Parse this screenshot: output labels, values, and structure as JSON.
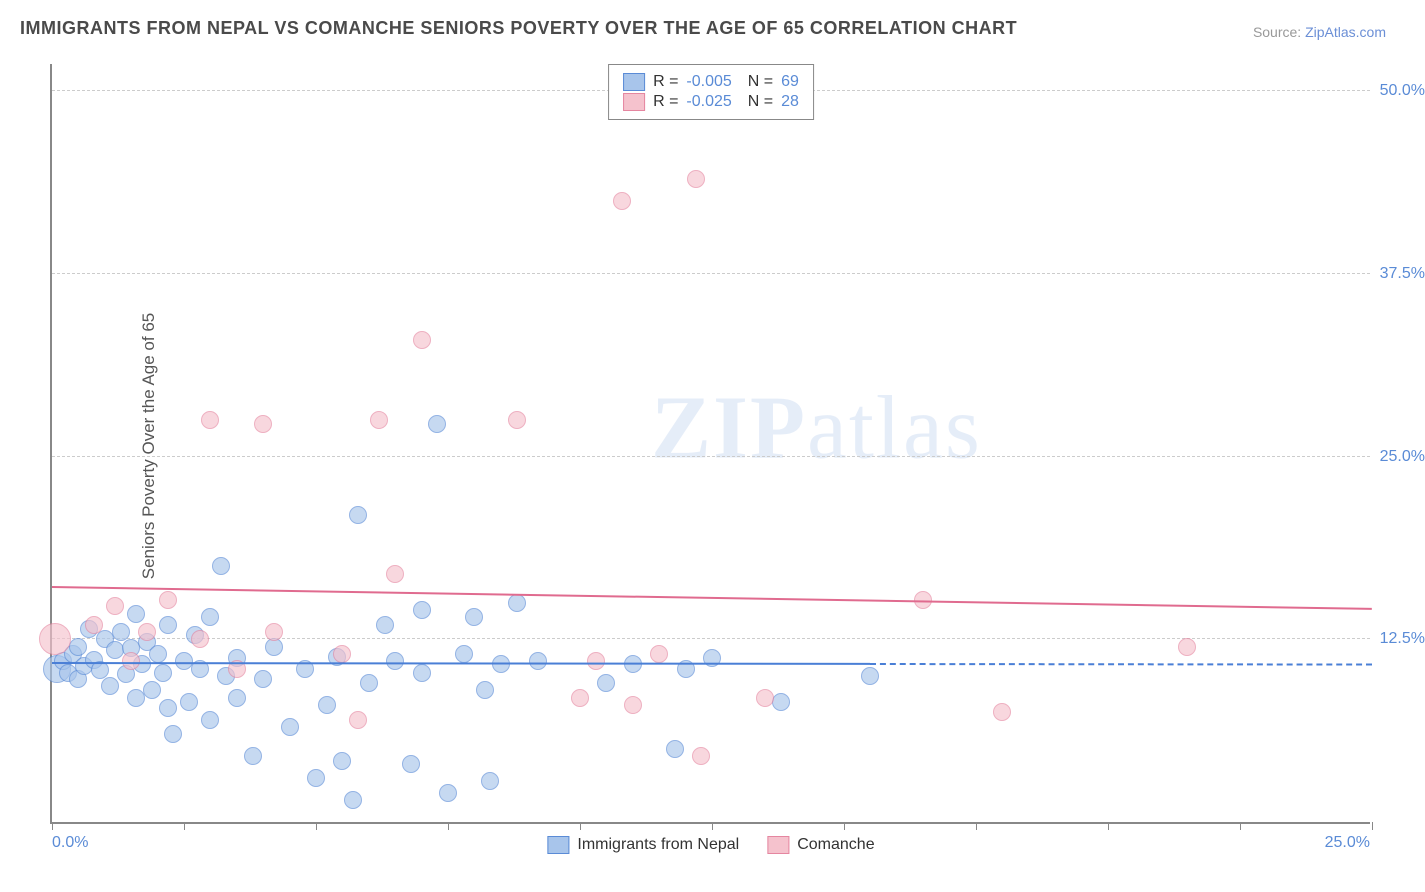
{
  "title": "IMMIGRANTS FROM NEPAL VS COMANCHE SENIORS POVERTY OVER THE AGE OF 65 CORRELATION CHART",
  "source_label": "Source:",
  "source_name": "ZipAtlas.com",
  "watermark_bold": "ZIP",
  "watermark_rest": "atlas",
  "chart": {
    "type": "scatter",
    "ylabel": "Seniors Poverty Over the Age of 65",
    "xlim": [
      0,
      25
    ],
    "ylim": [
      0,
      52
    ],
    "x_axis_ticks": [
      0,
      2.5,
      5,
      7.5,
      10,
      12.5,
      15,
      17.5,
      20,
      22.5,
      25
    ],
    "x_axis_labels": {
      "left": "0.0%",
      "right": "25.0%"
    },
    "y_gridlines": [
      {
        "v": 12.5,
        "label": "12.5%"
      },
      {
        "v": 25.0,
        "label": "25.0%"
      },
      {
        "v": 37.5,
        "label": "37.5%"
      },
      {
        "v": 50.0,
        "label": "50.0%"
      }
    ],
    "background_color": "#ffffff",
    "grid_color": "#cccccc",
    "axis_color": "#888888",
    "tick_label_color": "#5a8bd6",
    "title_fontsize": 18,
    "label_fontsize": 17,
    "tick_fontsize": 16,
    "series": [
      {
        "name": "Immigrants from Nepal",
        "fill": "#a8c5eb",
        "stroke": "#5a8bd6",
        "opacity": 0.65,
        "marker_radius": 9,
        "R": "-0.005",
        "N": "69",
        "trend": {
          "y_start": 10.8,
          "y_end": 10.7,
          "solid_until_x": 15.5,
          "color": "#4a7fd6"
        },
        "points": [
          {
            "x": 0.1,
            "y": 10.5,
            "r": 14
          },
          {
            "x": 0.2,
            "y": 11.0
          },
          {
            "x": 0.3,
            "y": 10.2
          },
          {
            "x": 0.4,
            "y": 11.5
          },
          {
            "x": 0.5,
            "y": 9.8
          },
          {
            "x": 0.6,
            "y": 10.7
          },
          {
            "x": 0.5,
            "y": 12.0
          },
          {
            "x": 0.7,
            "y": 13.2
          },
          {
            "x": 0.8,
            "y": 11.1
          },
          {
            "x": 0.9,
            "y": 10.4
          },
          {
            "x": 1.0,
            "y": 12.5
          },
          {
            "x": 1.1,
            "y": 9.3
          },
          {
            "x": 1.2,
            "y": 11.8
          },
          {
            "x": 1.3,
            "y": 13.0
          },
          {
            "x": 1.4,
            "y": 10.1
          },
          {
            "x": 1.5,
            "y": 11.9
          },
          {
            "x": 1.6,
            "y": 8.5
          },
          {
            "x": 1.6,
            "y": 14.2
          },
          {
            "x": 1.7,
            "y": 10.8
          },
          {
            "x": 1.8,
            "y": 12.3
          },
          {
            "x": 1.9,
            "y": 9.0
          },
          {
            "x": 2.0,
            "y": 11.5
          },
          {
            "x": 2.1,
            "y": 10.2
          },
          {
            "x": 2.2,
            "y": 7.8
          },
          {
            "x": 2.2,
            "y": 13.5
          },
          {
            "x": 2.3,
            "y": 6.0
          },
          {
            "x": 2.5,
            "y": 11.0
          },
          {
            "x": 2.6,
            "y": 8.2
          },
          {
            "x": 2.7,
            "y": 12.8
          },
          {
            "x": 2.8,
            "y": 10.5
          },
          {
            "x": 3.0,
            "y": 14.0
          },
          {
            "x": 3.0,
            "y": 7.0
          },
          {
            "x": 3.2,
            "y": 17.5
          },
          {
            "x": 3.3,
            "y": 10.0
          },
          {
            "x": 3.5,
            "y": 8.5
          },
          {
            "x": 3.5,
            "y": 11.2
          },
          {
            "x": 3.8,
            "y": 4.5
          },
          {
            "x": 4.0,
            "y": 9.8
          },
          {
            "x": 4.2,
            "y": 12.0
          },
          {
            "x": 4.5,
            "y": 6.5
          },
          {
            "x": 4.8,
            "y": 10.5
          },
          {
            "x": 5.0,
            "y": 3.0
          },
          {
            "x": 5.2,
            "y": 8.0
          },
          {
            "x": 5.4,
            "y": 11.3
          },
          {
            "x": 5.5,
            "y": 4.2
          },
          {
            "x": 5.7,
            "y": 1.5
          },
          {
            "x": 5.8,
            "y": 21.0
          },
          {
            "x": 6.0,
            "y": 9.5
          },
          {
            "x": 6.3,
            "y": 13.5
          },
          {
            "x": 6.5,
            "y": 11.0
          },
          {
            "x": 6.8,
            "y": 4.0
          },
          {
            "x": 7.0,
            "y": 14.5
          },
          {
            "x": 7.0,
            "y": 10.2
          },
          {
            "x": 7.3,
            "y": 27.2
          },
          {
            "x": 7.5,
            "y": 2.0
          },
          {
            "x": 7.8,
            "y": 11.5
          },
          {
            "x": 8.0,
            "y": 14.0
          },
          {
            "x": 8.2,
            "y": 9.0
          },
          {
            "x": 8.3,
            "y": 2.8
          },
          {
            "x": 8.5,
            "y": 10.8
          },
          {
            "x": 8.8,
            "y": 15.0
          },
          {
            "x": 9.2,
            "y": 11.0
          },
          {
            "x": 10.5,
            "y": 9.5
          },
          {
            "x": 11.0,
            "y": 10.8
          },
          {
            "x": 11.8,
            "y": 5.0
          },
          {
            "x": 12.0,
            "y": 10.5
          },
          {
            "x": 12.5,
            "y": 11.2
          },
          {
            "x": 13.8,
            "y": 8.2
          },
          {
            "x": 15.5,
            "y": 10.0
          }
        ]
      },
      {
        "name": "Comanche",
        "fill": "#f5c2cd",
        "stroke": "#e586a0",
        "opacity": 0.65,
        "marker_radius": 9,
        "R": "-0.025",
        "N": "28",
        "trend": {
          "y_start": 16.0,
          "y_end": 14.5,
          "solid_until_x": 25,
          "color": "#e06b8f"
        },
        "points": [
          {
            "x": 0.05,
            "y": 12.5,
            "r": 16
          },
          {
            "x": 0.8,
            "y": 13.5
          },
          {
            "x": 1.2,
            "y": 14.8
          },
          {
            "x": 1.5,
            "y": 11.0
          },
          {
            "x": 1.8,
            "y": 13.0
          },
          {
            "x": 2.2,
            "y": 15.2
          },
          {
            "x": 2.8,
            "y": 12.5
          },
          {
            "x": 3.0,
            "y": 27.5
          },
          {
            "x": 3.5,
            "y": 10.5
          },
          {
            "x": 4.0,
            "y": 27.2
          },
          {
            "x": 4.2,
            "y": 13.0
          },
          {
            "x": 5.5,
            "y": 11.5
          },
          {
            "x": 5.8,
            "y": 7.0
          },
          {
            "x": 6.2,
            "y": 27.5
          },
          {
            "x": 6.5,
            "y": 17.0
          },
          {
            "x": 7.0,
            "y": 33.0
          },
          {
            "x": 8.8,
            "y": 27.5
          },
          {
            "x": 10.0,
            "y": 8.5
          },
          {
            "x": 10.3,
            "y": 11.0
          },
          {
            "x": 10.8,
            "y": 42.5
          },
          {
            "x": 11.0,
            "y": 8.0
          },
          {
            "x": 11.5,
            "y": 11.5
          },
          {
            "x": 12.2,
            "y": 44.0
          },
          {
            "x": 12.3,
            "y": 4.5
          },
          {
            "x": 13.5,
            "y": 8.5
          },
          {
            "x": 16.5,
            "y": 15.2
          },
          {
            "x": 18.0,
            "y": 7.5
          },
          {
            "x": 21.5,
            "y": 12.0
          }
        ]
      }
    ]
  },
  "legend_bottom": [
    {
      "label": "Immigrants from Nepal",
      "fill": "#a8c5eb",
      "stroke": "#5a8bd6"
    },
    {
      "label": "Comanche",
      "fill": "#f5c2cd",
      "stroke": "#e586a0"
    }
  ]
}
